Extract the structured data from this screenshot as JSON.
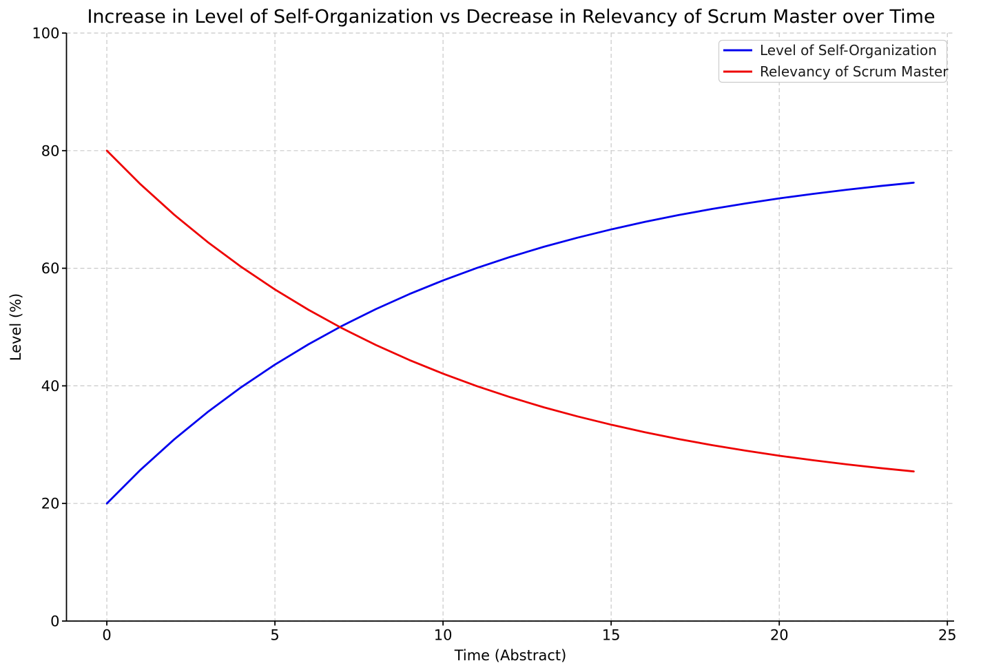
{
  "chart_data": {
    "type": "line",
    "title": "Increase in Level of Self-Organization vs Decrease in Relevancy of Scrum Master over Time",
    "xlabel": "Time (Abstract)",
    "ylabel": "Level (%)",
    "xlim": [
      -1.2,
      25.2
    ],
    "ylim": [
      0,
      100
    ],
    "xticks": [
      0,
      5,
      10,
      15,
      20,
      25
    ],
    "yticks": [
      0,
      20,
      40,
      60,
      80,
      100
    ],
    "grid": true,
    "grid_style": "dashed",
    "grid_color": "#c8c8c8",
    "legend_position": "upper right",
    "x": [
      0,
      1,
      2,
      3,
      4,
      5,
      6,
      7,
      8,
      9,
      10,
      11,
      12,
      13,
      14,
      15,
      16,
      17,
      18,
      19,
      20,
      21,
      22,
      23,
      24
    ],
    "series": [
      {
        "name": "Level of Self-Organization",
        "color": "#0000ee",
        "values": [
          20.0,
          25.71,
          30.88,
          35.55,
          39.78,
          43.61,
          47.07,
          50.21,
          53.04,
          55.61,
          57.93,
          60.03,
          61.93,
          63.65,
          65.2,
          66.61,
          67.89,
          69.04,
          70.08,
          71.02,
          71.88,
          72.65,
          73.35,
          73.98,
          74.56
        ]
      },
      {
        "name": "Relevancy of Scrum Master",
        "color": "#ee0000",
        "values": [
          80.0,
          74.29,
          69.12,
          64.45,
          60.22,
          56.39,
          52.93,
          49.79,
          46.96,
          44.39,
          42.07,
          39.97,
          38.07,
          36.35,
          34.8,
          33.39,
          32.11,
          30.96,
          29.92,
          28.98,
          28.12,
          27.35,
          26.65,
          26.02,
          25.44
        ]
      }
    ]
  }
}
